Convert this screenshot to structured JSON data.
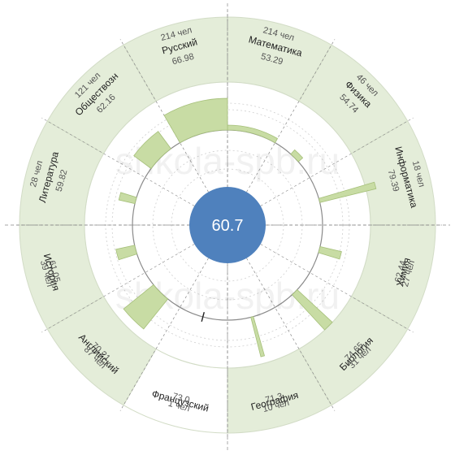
{
  "chart_data": {
    "type": "radial-bar",
    "center_value": "60.7",
    "watermark": "shkola-spb.ru",
    "colors": {
      "ring_fill": "#e4edd9",
      "ring_empty": "#ffffff",
      "ring_stroke": "#d2dcc6",
      "bar_fill": "#c8dca4",
      "bar_stroke": "#a6c07a",
      "center_fill": "#4f81bd",
      "axis": "#888888"
    },
    "categories": [
      {
        "name": "Математика",
        "count_label": "214 чел",
        "score_label": "53.29",
        "count": 214,
        "score": 53.29
      },
      {
        "name": "Физика",
        "count_label": "46 чел",
        "score_label": "54.74",
        "count": 46,
        "score": 54.74
      },
      {
        "name": "Информатика",
        "count_label": "18 чел",
        "score_label": "79.39",
        "count": 18,
        "score": 79.39
      },
      {
        "name": "Химия",
        "count_label": "27 чел",
        "score_label": "62.44",
        "count": 27,
        "score": 62.44
      },
      {
        "name": "Биология",
        "count_label": "31 чел",
        "score_label": "74.65",
        "count": 31,
        "score": 74.65
      },
      {
        "name": "География",
        "count_label": "10 чел",
        "score_label": "71.3",
        "count": 10,
        "score": 71.3
      },
      {
        "name": "Французский",
        "count_label": "1 чел",
        "score_label": "73.0",
        "count": 1,
        "score": 73.0
      },
      {
        "name": "Английский",
        "count_label": "87 чел",
        "score_label": "70.21",
        "count": 87,
        "score": 70.21
      },
      {
        "name": "История",
        "count_label": "39 чел",
        "score_label": "61.05",
        "count": 39,
        "score": 61.05
      },
      {
        "name": "Литература",
        "count_label": "28 чел",
        "score_label": "59.82",
        "count": 28,
        "score": 59.82
      },
      {
        "name": "Обществозн",
        "count_label": "121 чел",
        "score_label": "62.16",
        "count": 121,
        "score": 62.16
      },
      {
        "name": "Русский",
        "count_label": "214 чел",
        "score_label": "66.98",
        "count": 214,
        "score": 66.98
      }
    ]
  }
}
